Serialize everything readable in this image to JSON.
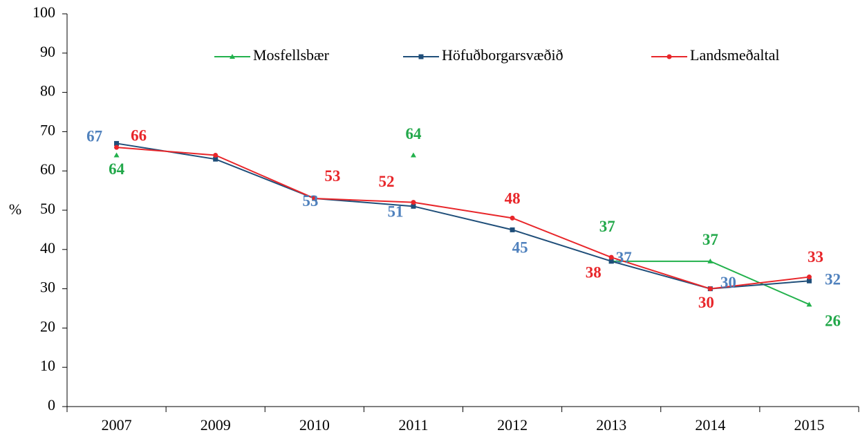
{
  "chart_data": {
    "type": "line",
    "y_label": "%",
    "categories": [
      "2007",
      "2009",
      "2010",
      "2011",
      "2012",
      "2013",
      "2014",
      "2015"
    ],
    "ylim": [
      0,
      100
    ],
    "yticks": [
      0,
      10,
      20,
      30,
      40,
      50,
      60,
      70,
      80,
      90,
      100
    ],
    "legend": "top",
    "series": [
      {
        "name": "Mosfellsbær",
        "color": "#22b14c",
        "label_color": "#22a84a",
        "marker": "triangle",
        "values": [
          64,
          null,
          null,
          64,
          null,
          37,
          37,
          26
        ],
        "value_labels": [
          "64",
          null,
          null,
          "64",
          null,
          "37",
          "37",
          "26"
        ]
      },
      {
        "name": "Höfuðborgarsvæðið",
        "color": "#1f4e79",
        "label_color": "#4f81bd",
        "marker": "square",
        "values": [
          67,
          63,
          53,
          51,
          45,
          37,
          30,
          32
        ],
        "value_labels": [
          "67",
          null,
          "53",
          "51",
          "45",
          "37",
          "30",
          "32"
        ]
      },
      {
        "name": "Landsmeðaltal",
        "color": "#e8262a",
        "label_color": "#e8262a",
        "marker": "circle",
        "values": [
          66,
          64,
          53,
          52,
          48,
          38,
          30,
          33
        ],
        "value_labels": [
          "66",
          null,
          "53",
          "52",
          "48",
          "38",
          "30",
          "33"
        ]
      }
    ]
  }
}
